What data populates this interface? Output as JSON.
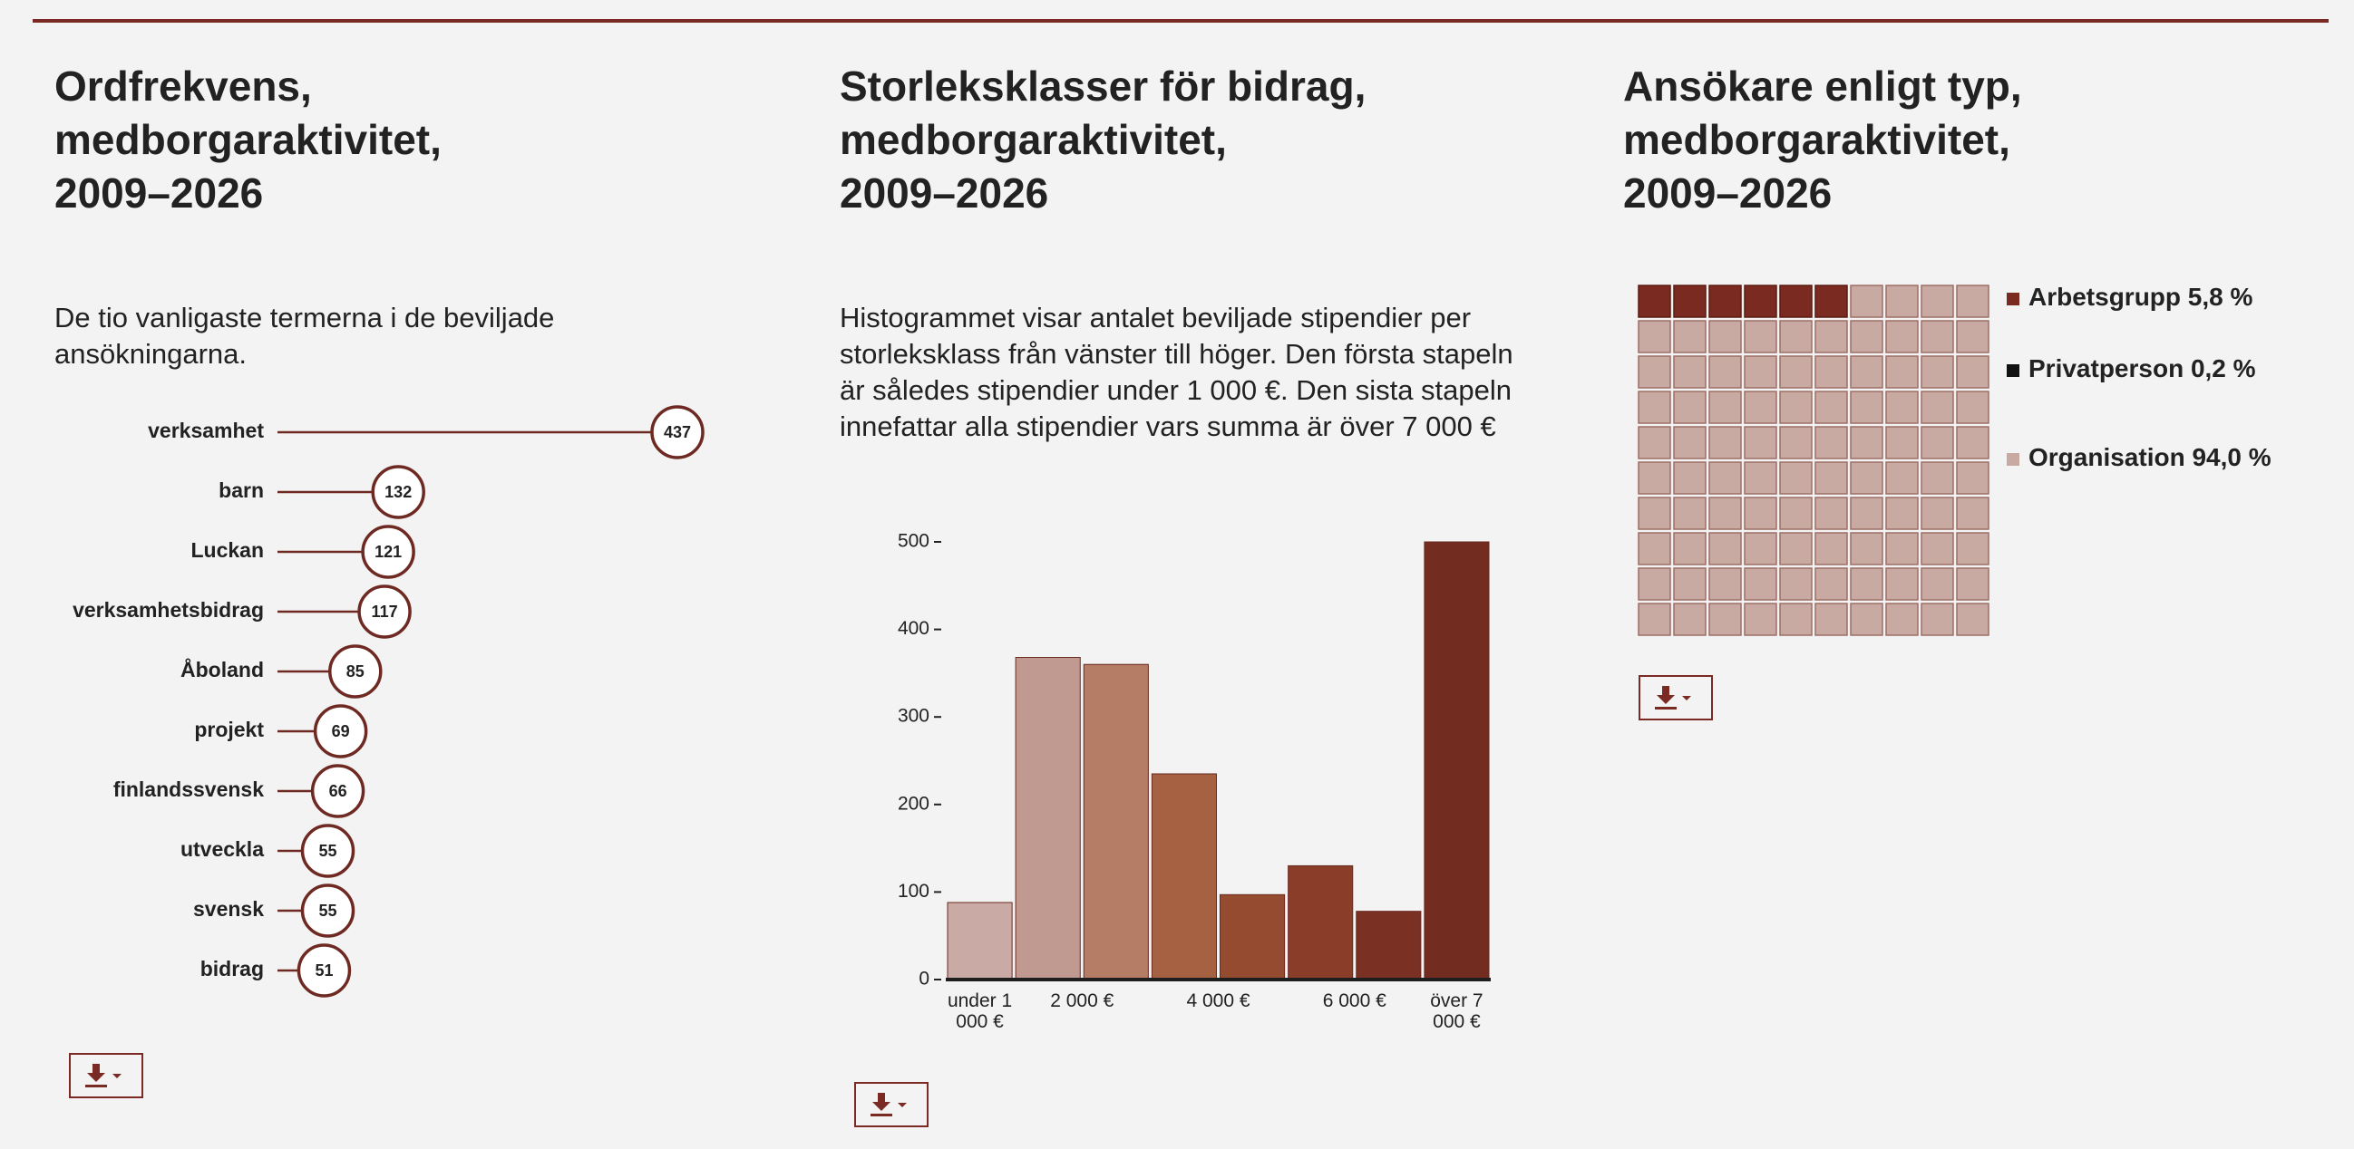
{
  "chart_data": [
    {
      "type": "lollipop",
      "title": "Ordfrekvens,\nmedborgaraktivitet,\n2009–2026",
      "subtitle": "De tio vanligaste termerna i de beviljade ansökningarna.",
      "categories": [
        "verksamhet",
        "barn",
        "Luckan",
        "verksamhetsbidrag",
        "Åboland",
        "projekt",
        "finlandssvensk",
        "utveckla",
        "svensk",
        "bidrag"
      ],
      "values": [
        437,
        132,
        121,
        117,
        85,
        69,
        66,
        55,
        55,
        51
      ],
      "color": "#6e2a22"
    },
    {
      "type": "histogram",
      "title": "Storleksklasser för bidrag,\nmedborgaraktivitet,\n2009–2026",
      "subtitle": "Histogrammet visar antalet beviljade stipendier per storleksklass från vänster till höger. Den första stapeln är således stipendier under 1 000 €. Den sista stapeln innefattar alla stipendier vars summa är över 7 000 €",
      "bins": [
        0,
        1000,
        2000,
        3000,
        4000,
        5000,
        6000,
        7000,
        8000
      ],
      "values": [
        88,
        368,
        360,
        235,
        97,
        130,
        78,
        500
      ],
      "colors": [
        "#c9aaa4",
        "#c09a90",
        "#b57c66",
        "#a66142",
        "#944b2f",
        "#8a3e2a",
        "#7a3124",
        "#722c20"
      ],
      "xlim": [
        0,
        8000
      ],
      "xticks": [
        {
          "value": 500,
          "label": "under 1 000 €"
        },
        {
          "value": 2000,
          "label": "2 000 €"
        },
        {
          "value": 4000,
          "label": "4 000 €"
        },
        {
          "value": 6000,
          "label": "6 000 €"
        },
        {
          "value": 7500,
          "label": "över 7 000 €"
        }
      ],
      "ylim": [
        0,
        500
      ],
      "yticks": [
        0,
        100,
        200,
        300,
        400,
        500
      ]
    },
    {
      "type": "waffle",
      "title": "Ansökare enligt typ,\nmedborgaraktivitet,\n2009–2026",
      "series": [
        {
          "name": "Arbetsgrupp",
          "color": "#7a2a20",
          "value": 5.8,
          "value_label": "5,8 %"
        },
        {
          "name": "Privatperson",
          "color": "#111111",
          "value": 0.2,
          "value_label": "0,2 %"
        },
        {
          "name": "Organisation",
          "color": "#c8aaa3",
          "value": 94.0,
          "value_label": "94,0 %"
        }
      ]
    }
  ]
}
